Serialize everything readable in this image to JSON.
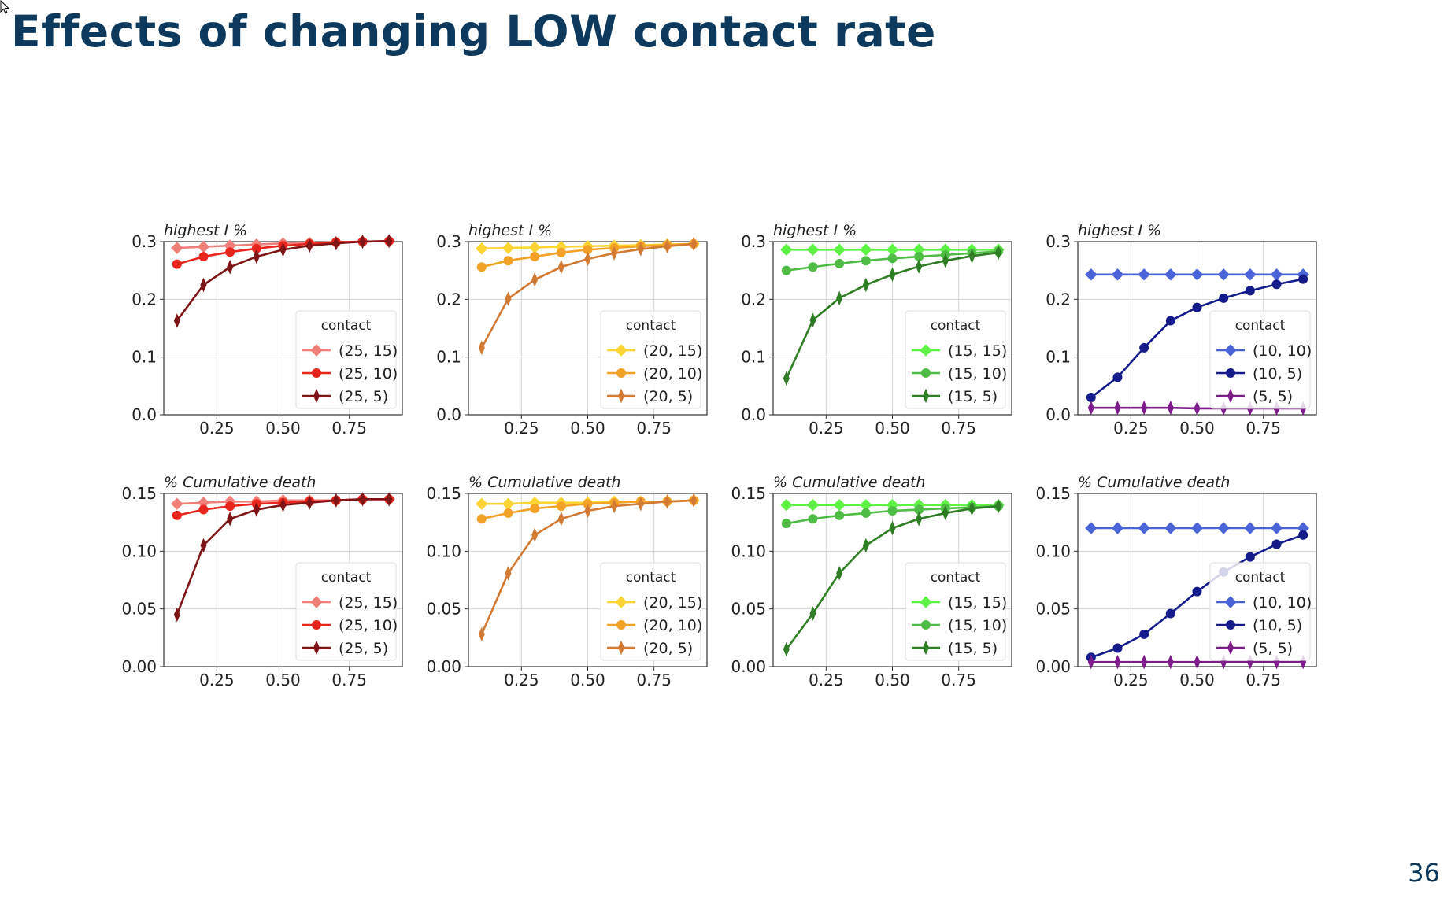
{
  "slide": {
    "title": "Effects of changing LOW contact rate",
    "page_number": "36"
  },
  "chart_data": [
    {
      "type": "line",
      "title": "highest I %",
      "xlabel": "",
      "ylabel": "",
      "x": [
        0.1,
        0.2,
        0.3,
        0.4,
        0.5,
        0.6,
        0.7,
        0.8,
        0.9
      ],
      "xlim": [
        0.05,
        0.95
      ],
      "ylim": [
        0,
        0.3
      ],
      "xticks": [
        "0.25",
        "0.50",
        "0.75"
      ],
      "yticks": [
        "0.0",
        "0.1",
        "0.2",
        "0.3"
      ],
      "legend": {
        "title": "contact",
        "placement": "lower-right"
      },
      "grid": true,
      "series": [
        {
          "name": "(25, 15)",
          "color": "#ef7f78",
          "marker": "diamond",
          "values": [
            0.289,
            0.291,
            0.293,
            0.295,
            0.297,
            0.298,
            0.299,
            0.3,
            0.301
          ]
        },
        {
          "name": "(25, 10)",
          "color": "#e8251d",
          "marker": "circle",
          "values": [
            0.261,
            0.274,
            0.282,
            0.288,
            0.293,
            0.296,
            0.299,
            0.3,
            0.301
          ]
        },
        {
          "name": "(25, 5)",
          "color": "#7e1416",
          "marker": "thin-diamond",
          "values": [
            0.163,
            0.225,
            0.256,
            0.274,
            0.286,
            0.293,
            0.297,
            0.3,
            0.301
          ]
        }
      ]
    },
    {
      "type": "line",
      "title": "highest I %",
      "xlabel": "",
      "ylabel": "",
      "x": [
        0.1,
        0.2,
        0.3,
        0.4,
        0.5,
        0.6,
        0.7,
        0.8,
        0.9
      ],
      "xlim": [
        0.05,
        0.95
      ],
      "ylim": [
        0,
        0.3
      ],
      "xticks": [
        "0.25",
        "0.50",
        "0.75"
      ],
      "yticks": [
        "0.0",
        "0.1",
        "0.2",
        "0.3"
      ],
      "legend": {
        "title": "contact",
        "placement": "lower-right"
      },
      "grid": true,
      "series": [
        {
          "name": "(20, 15)",
          "color": "#fcd434",
          "marker": "diamond",
          "values": [
            0.288,
            0.289,
            0.29,
            0.291,
            0.292,
            0.293,
            0.294,
            0.295,
            0.296
          ]
        },
        {
          "name": "(20, 10)",
          "color": "#f3a228",
          "marker": "circle",
          "values": [
            0.256,
            0.267,
            0.274,
            0.281,
            0.286,
            0.289,
            0.292,
            0.294,
            0.296
          ]
        },
        {
          "name": "(20, 5)",
          "color": "#d37a32",
          "marker": "thin-diamond",
          "values": [
            0.116,
            0.201,
            0.234,
            0.256,
            0.27,
            0.28,
            0.287,
            0.292,
            0.296
          ]
        }
      ]
    },
    {
      "type": "line",
      "title": "highest I %",
      "xlabel": "",
      "ylabel": "",
      "x": [
        0.1,
        0.2,
        0.3,
        0.4,
        0.5,
        0.6,
        0.7,
        0.8,
        0.9
      ],
      "xlim": [
        0.05,
        0.95
      ],
      "ylim": [
        0,
        0.3
      ],
      "xticks": [
        "0.25",
        "0.50",
        "0.75"
      ],
      "yticks": [
        "0.0",
        "0.1",
        "0.2",
        "0.3"
      ],
      "legend": {
        "title": "contact",
        "placement": "lower-right"
      },
      "grid": true,
      "series": [
        {
          "name": "(15, 15)",
          "color": "#5ef244",
          "marker": "diamond",
          "values": [
            0.286,
            0.286,
            0.286,
            0.286,
            0.286,
            0.286,
            0.286,
            0.286,
            0.286
          ]
        },
        {
          "name": "(15, 10)",
          "color": "#4fbd45",
          "marker": "circle",
          "values": [
            0.25,
            0.256,
            0.262,
            0.267,
            0.271,
            0.274,
            0.277,
            0.28,
            0.283
          ]
        },
        {
          "name": "(15, 5)",
          "color": "#2f7d24",
          "marker": "thin-diamond",
          "values": [
            0.063,
            0.164,
            0.202,
            0.225,
            0.243,
            0.257,
            0.267,
            0.275,
            0.281
          ]
        }
      ]
    },
    {
      "type": "line",
      "title": "highest I %",
      "xlabel": "",
      "ylabel": "",
      "x": [
        0.1,
        0.2,
        0.3,
        0.4,
        0.5,
        0.6,
        0.7,
        0.8,
        0.9
      ],
      "xlim": [
        0.05,
        0.95
      ],
      "ylim": [
        0,
        0.3
      ],
      "xticks": [
        "0.25",
        "0.50",
        "0.75"
      ],
      "yticks": [
        "0.0",
        "0.1",
        "0.2",
        "0.3"
      ],
      "legend": {
        "title": "contact",
        "placement": "right"
      },
      "grid": true,
      "series": [
        {
          "name": "(10, 10)",
          "color": "#4a64d8",
          "marker": "diamond",
          "values": [
            0.243,
            0.243,
            0.243,
            0.243,
            0.243,
            0.243,
            0.243,
            0.243,
            0.243
          ]
        },
        {
          "name": "(10, 5)",
          "color": "#141b8a",
          "marker": "circle",
          "values": [
            0.03,
            0.065,
            0.116,
            0.163,
            0.186,
            0.202,
            0.215,
            0.226,
            0.235
          ]
        },
        {
          "name": "(5, 5)",
          "color": "#7d1d8a",
          "marker": "thin-diamond",
          "values": [
            0.012,
            0.012,
            0.012,
            0.012,
            0.011,
            0.011,
            0.011,
            0.011,
            0.011
          ]
        }
      ]
    },
    {
      "type": "line",
      "title": "% Cumulative death",
      "xlabel": "",
      "ylabel": "",
      "x": [
        0.1,
        0.2,
        0.3,
        0.4,
        0.5,
        0.6,
        0.7,
        0.8,
        0.9
      ],
      "xlim": [
        0.05,
        0.95
      ],
      "ylim": [
        0,
        0.15
      ],
      "xticks": [
        "0.25",
        "0.50",
        "0.75"
      ],
      "yticks": [
        "0.00",
        "0.05",
        "0.10",
        "0.15"
      ],
      "legend": {
        "title": "contact",
        "placement": "lower-right"
      },
      "grid": true,
      "series": [
        {
          "name": "(25, 15)",
          "color": "#ef7f78",
          "marker": "diamond",
          "values": [
            0.141,
            0.142,
            0.143,
            0.143,
            0.144,
            0.144,
            0.144,
            0.145,
            0.145
          ]
        },
        {
          "name": "(25, 10)",
          "color": "#e8251d",
          "marker": "circle",
          "values": [
            0.131,
            0.136,
            0.139,
            0.141,
            0.142,
            0.143,
            0.144,
            0.145,
            0.145
          ]
        },
        {
          "name": "(25, 5)",
          "color": "#7e1416",
          "marker": "thin-diamond",
          "values": [
            0.045,
            0.105,
            0.128,
            0.136,
            0.14,
            0.142,
            0.144,
            0.145,
            0.145
          ]
        }
      ]
    },
    {
      "type": "line",
      "title": "% Cumulative death",
      "xlabel": "",
      "ylabel": "",
      "x": [
        0.1,
        0.2,
        0.3,
        0.4,
        0.5,
        0.6,
        0.7,
        0.8,
        0.9
      ],
      "xlim": [
        0.05,
        0.95
      ],
      "ylim": [
        0,
        0.15
      ],
      "xticks": [
        "0.25",
        "0.50",
        "0.75"
      ],
      "yticks": [
        "0.00",
        "0.05",
        "0.10",
        "0.15"
      ],
      "legend": {
        "title": "contact",
        "placement": "lower-right"
      },
      "grid": true,
      "series": [
        {
          "name": "(20, 15)",
          "color": "#fcd434",
          "marker": "diamond",
          "values": [
            0.141,
            0.141,
            0.142,
            0.142,
            0.142,
            0.143,
            0.143,
            0.143,
            0.144
          ]
        },
        {
          "name": "(20, 10)",
          "color": "#f3a228",
          "marker": "circle",
          "values": [
            0.128,
            0.133,
            0.137,
            0.139,
            0.141,
            0.142,
            0.143,
            0.143,
            0.144
          ]
        },
        {
          "name": "(20, 5)",
          "color": "#d37a32",
          "marker": "thin-diamond",
          "values": [
            0.028,
            0.081,
            0.114,
            0.128,
            0.135,
            0.139,
            0.141,
            0.143,
            0.144
          ]
        }
      ]
    },
    {
      "type": "line",
      "title": "% Cumulative death",
      "xlabel": "",
      "ylabel": "",
      "x": [
        0.1,
        0.2,
        0.3,
        0.4,
        0.5,
        0.6,
        0.7,
        0.8,
        0.9
      ],
      "xlim": [
        0.05,
        0.95
      ],
      "ylim": [
        0,
        0.15
      ],
      "xticks": [
        "0.25",
        "0.50",
        "0.75"
      ],
      "yticks": [
        "0.00",
        "0.05",
        "0.10",
        "0.15"
      ],
      "legend": {
        "title": "contact",
        "placement": "lower-right"
      },
      "grid": true,
      "series": [
        {
          "name": "(15, 15)",
          "color": "#5ef244",
          "marker": "diamond",
          "values": [
            0.14,
            0.14,
            0.14,
            0.14,
            0.14,
            0.14,
            0.14,
            0.14,
            0.14
          ]
        },
        {
          "name": "(15, 10)",
          "color": "#4fbd45",
          "marker": "circle",
          "values": [
            0.124,
            0.128,
            0.131,
            0.133,
            0.135,
            0.136,
            0.137,
            0.138,
            0.139
          ]
        },
        {
          "name": "(15, 5)",
          "color": "#2f7d24",
          "marker": "thin-diamond",
          "values": [
            0.015,
            0.046,
            0.081,
            0.105,
            0.12,
            0.128,
            0.133,
            0.137,
            0.139
          ]
        }
      ]
    },
    {
      "type": "line",
      "title": "% Cumulative death",
      "xlabel": "",
      "ylabel": "",
      "x": [
        0.1,
        0.2,
        0.3,
        0.4,
        0.5,
        0.6,
        0.7,
        0.8,
        0.9
      ],
      "xlim": [
        0.05,
        0.95
      ],
      "ylim": [
        0,
        0.15
      ],
      "xticks": [
        "0.25",
        "0.50",
        "0.75"
      ],
      "yticks": [
        "0.00",
        "0.05",
        "0.10",
        "0.15"
      ],
      "legend": {
        "title": "contact",
        "placement": "lower-right"
      },
      "grid": true,
      "series": [
        {
          "name": "(10, 10)",
          "color": "#4a64d8",
          "marker": "diamond",
          "values": [
            0.12,
            0.12,
            0.12,
            0.12,
            0.12,
            0.12,
            0.12,
            0.12,
            0.12
          ]
        },
        {
          "name": "(10, 5)",
          "color": "#141b8a",
          "marker": "circle",
          "values": [
            0.008,
            0.016,
            0.028,
            0.046,
            0.065,
            0.082,
            0.095,
            0.106,
            0.114
          ]
        },
        {
          "name": "(5, 5)",
          "color": "#7d1d8a",
          "marker": "thin-diamond",
          "values": [
            0.004,
            0.004,
            0.004,
            0.004,
            0.004,
            0.004,
            0.004,
            0.004,
            0.004
          ]
        }
      ]
    }
  ]
}
